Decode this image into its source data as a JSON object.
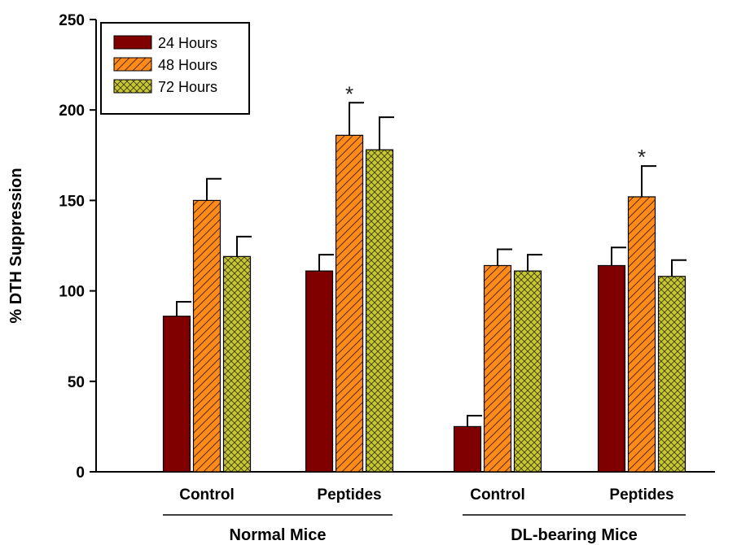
{
  "chart_data": {
    "type": "bar",
    "title": "",
    "ylabel": "% DTH Suppression",
    "xlabel": "",
    "ylim": [
      0,
      250
    ],
    "yticks": [
      0,
      50,
      100,
      150,
      200,
      250
    ],
    "groups": [
      {
        "label": "Normal Mice",
        "categories": [
          "Control",
          "Peptides"
        ]
      },
      {
        "label": "DL-bearing Mice",
        "categories": [
          "Control",
          "Peptides"
        ]
      }
    ],
    "categories": [
      "Control",
      "Peptides",
      "Control",
      "Peptides"
    ],
    "series": [
      {
        "name": "24 Hours",
        "color": "#800000",
        "pattern": "solid",
        "values": [
          86,
          111,
          25,
          114
        ],
        "errors": [
          8,
          9,
          6,
          10
        ]
      },
      {
        "name": "48 Hours",
        "color": "#ff8c1a",
        "pattern": "diagonal",
        "values": [
          150,
          186,
          114,
          152
        ],
        "errors": [
          12,
          18,
          9,
          17
        ]
      },
      {
        "name": "72 Hours",
        "color": "#c8c832",
        "pattern": "crosshatch",
        "values": [
          119,
          178,
          111,
          108
        ],
        "errors": [
          11,
          18,
          9,
          9
        ]
      }
    ],
    "annotations": [
      {
        "text": "*",
        "series": "48 Hours",
        "category_index": 1
      },
      {
        "text": "*",
        "series": "48 Hours",
        "category_index": 3
      }
    ],
    "legend": {
      "position": "top-left"
    }
  }
}
